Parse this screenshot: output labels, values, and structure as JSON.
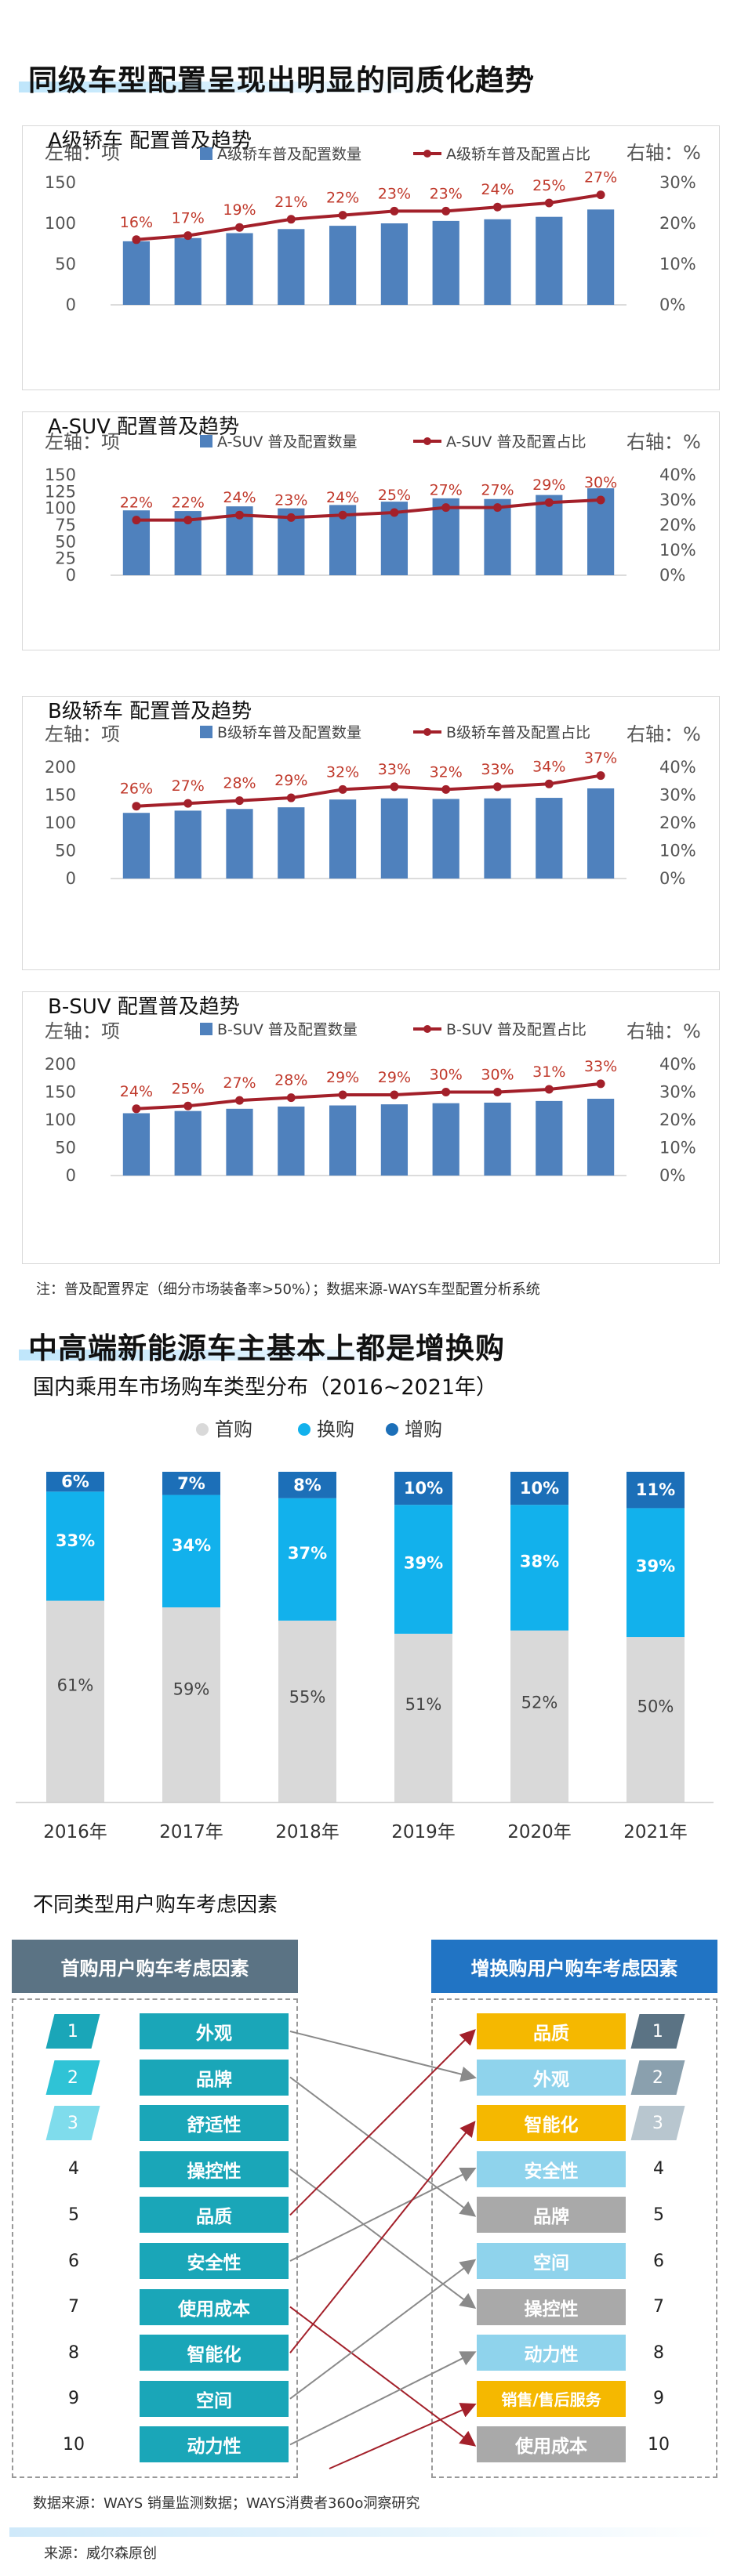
{
  "section1": {
    "title": "同级车型配置呈现出明显的同质化趋势",
    "note": "注：普及配置界定（细分市场装备率>50%）；数据来源-WAYS车型配置分析系统"
  },
  "chart_data": [
    {
      "type": "bar+line",
      "title": "A级轿车 配置普及趋势",
      "left_axis_label": "左轴：项",
      "right_axis_label": "右轴：%",
      "bar_legend": "A级轿车普及配置数量",
      "line_legend": "A级轿车普及配置占比",
      "colors": {
        "bar": "#4f81bd",
        "line": "#a3202a"
      },
      "ylim_left": [
        0,
        150
      ],
      "ylim_right": [
        0,
        30
      ],
      "yticks_left": [
        0,
        50,
        100,
        150
      ],
      "yticks_right": [
        0,
        10,
        20,
        30
      ],
      "yticklabels_right": [
        "0%",
        "10%",
        "20%",
        "30%"
      ],
      "bar_values": [
        78,
        82,
        88,
        93,
        97,
        100,
        103,
        105,
        108,
        117
      ],
      "line_values": [
        16,
        17,
        19,
        21,
        22,
        23,
        23,
        24,
        25,
        27
      ],
      "line_labels": [
        "16%",
        "17%",
        "19%",
        "21%",
        "22%",
        "23%",
        "23%",
        "24%",
        "25%",
        "27%"
      ]
    },
    {
      "type": "bar+line",
      "title": "A-SUV 配置普及趋势",
      "left_axis_label": "左轴：项",
      "right_axis_label": "右轴：%",
      "bar_legend": "A-SUV 普及配置数量",
      "line_legend": "A-SUV 普及配置占比",
      "colors": {
        "bar": "#4f81bd",
        "line": "#a3202a"
      },
      "ylim_left": [
        0,
        150
      ],
      "ylim_right": [
        0,
        40
      ],
      "yticks_left": [
        0,
        25,
        50,
        75,
        100,
        125,
        150
      ],
      "yticks_right": [
        0,
        10,
        20,
        30,
        40
      ],
      "yticklabels_right": [
        "0%",
        "10%",
        "20%",
        "30%",
        "40%"
      ],
      "bar_values": [
        97,
        96,
        103,
        100,
        105,
        110,
        115,
        114,
        120,
        130
      ],
      "line_values": [
        22,
        22,
        24,
        23,
        24,
        25,
        27,
        27,
        29,
        30
      ],
      "line_labels": [
        "22%",
        "22%",
        "24%",
        "23%",
        "24%",
        "25%",
        "27%",
        "27%",
        "29%",
        "30%"
      ]
    },
    {
      "type": "bar+line",
      "title": "B级轿车 配置普及趋势",
      "left_axis_label": "左轴：项",
      "right_axis_label": "右轴：%",
      "bar_legend": "B级轿车普及配置数量",
      "line_legend": "B级轿车普及配置占比",
      "colors": {
        "bar": "#4f81bd",
        "line": "#a3202a"
      },
      "ylim_left": [
        0,
        200
      ],
      "ylim_right": [
        0,
        40
      ],
      "yticks_left": [
        0,
        50,
        100,
        150,
        200
      ],
      "yticks_right": [
        0,
        10,
        20,
        30,
        40
      ],
      "yticklabels_right": [
        "0%",
        "10%",
        "20%",
        "30%",
        "40%"
      ],
      "bar_values": [
        118,
        122,
        125,
        128,
        142,
        144,
        143,
        144,
        145,
        162
      ],
      "line_values": [
        26,
        27,
        28,
        29,
        32,
        33,
        32,
        33,
        34,
        37
      ],
      "line_labels": [
        "26%",
        "27%",
        "28%",
        "29%",
        "32%",
        "33%",
        "32%",
        "33%",
        "34%",
        "37%"
      ]
    },
    {
      "type": "bar+line",
      "title": "B-SUV 配置普及趋势",
      "left_axis_label": "左轴：项",
      "right_axis_label": "右轴：%",
      "bar_legend": "B-SUV 普及配置数量",
      "line_legend": "B-SUV 普及配置占比",
      "colors": {
        "bar": "#4f81bd",
        "line": "#a3202a"
      },
      "ylim_left": [
        0,
        200
      ],
      "ylim_right": [
        0,
        40
      ],
      "yticks_left": [
        0,
        50,
        100,
        150,
        200
      ],
      "yticks_right": [
        0,
        10,
        20,
        30,
        40
      ],
      "yticklabels_right": [
        "0%",
        "10%",
        "20%",
        "30%",
        "40%"
      ],
      "bar_values": [
        112,
        116,
        120,
        124,
        126,
        128,
        130,
        131,
        134,
        138
      ],
      "line_values": [
        24,
        25,
        27,
        28,
        29,
        29,
        30,
        30,
        31,
        33
      ],
      "line_labels": [
        "24%",
        "25%",
        "27%",
        "28%",
        "29%",
        "29%",
        "30%",
        "30%",
        "31%",
        "33%"
      ]
    },
    {
      "type": "stacked-bar",
      "title": "国内乘用车市场购车类型分布（2016~2021年）",
      "categories": [
        "2016年",
        "2017年",
        "2018年",
        "2019年",
        "2020年",
        "2021年"
      ],
      "series": [
        {
          "name": "首购",
          "color": "#d9d9d9",
          "values": [
            61,
            59,
            55,
            51,
            52,
            50
          ],
          "labels": [
            "61%",
            "59%",
            "55%",
            "51%",
            "52%",
            "50%"
          ]
        },
        {
          "name": "换购",
          "color": "#12b1ec",
          "values": [
            33,
            34,
            37,
            39,
            38,
            39
          ],
          "labels": [
            "33%",
            "34%",
            "37%",
            "39%",
            "38%",
            "39%"
          ]
        },
        {
          "name": "增购",
          "color": "#1c6fb8",
          "values": [
            6,
            7,
            8,
            10,
            10,
            11
          ],
          "labels": [
            "6%",
            "7%",
            "8%",
            "10%",
            "10%",
            "11%"
          ]
        }
      ],
      "ylim": [
        0,
        100
      ]
    }
  ],
  "section2": {
    "title": "中高端新能源车主基本上都是增换购",
    "factors_title": "不同类型用户购车考虑因素",
    "first_header": "首购用户购车考虑因素",
    "repeat_header": "增换购用户购车考虑因素",
    "ranks": [
      "1",
      "2",
      "3",
      "4",
      "5",
      "6",
      "7",
      "8",
      "9",
      "10"
    ],
    "first_factors": [
      "外观",
      "品牌",
      "舒适性",
      "操控性",
      "品质",
      "安全性",
      "使用成本",
      "智能化",
      "空间",
      "动力性"
    ],
    "repeat_factors": [
      "品质",
      "外观",
      "智能化",
      "安全性",
      "品牌",
      "空间",
      "操控性",
      "动力性",
      "销售/售后服务",
      "使用成本"
    ],
    "colors": {
      "first_header": "#5b7384",
      "repeat_header": "#2174c4",
      "first_factor": "#1aa6b8",
      "repeat_yellow": "#f5b800",
      "repeat_blue": "#8fd3ec",
      "repeat_gray": "#a9a9a9",
      "arrow_dark": "#a3202a",
      "arrow_gray": "#8a8a8a"
    }
  },
  "footer": {
    "data_source": "数据来源：WAYS 销量监测数据；WAYS消费者360o洞察研究",
    "source": "来源：威尔森原创"
  }
}
